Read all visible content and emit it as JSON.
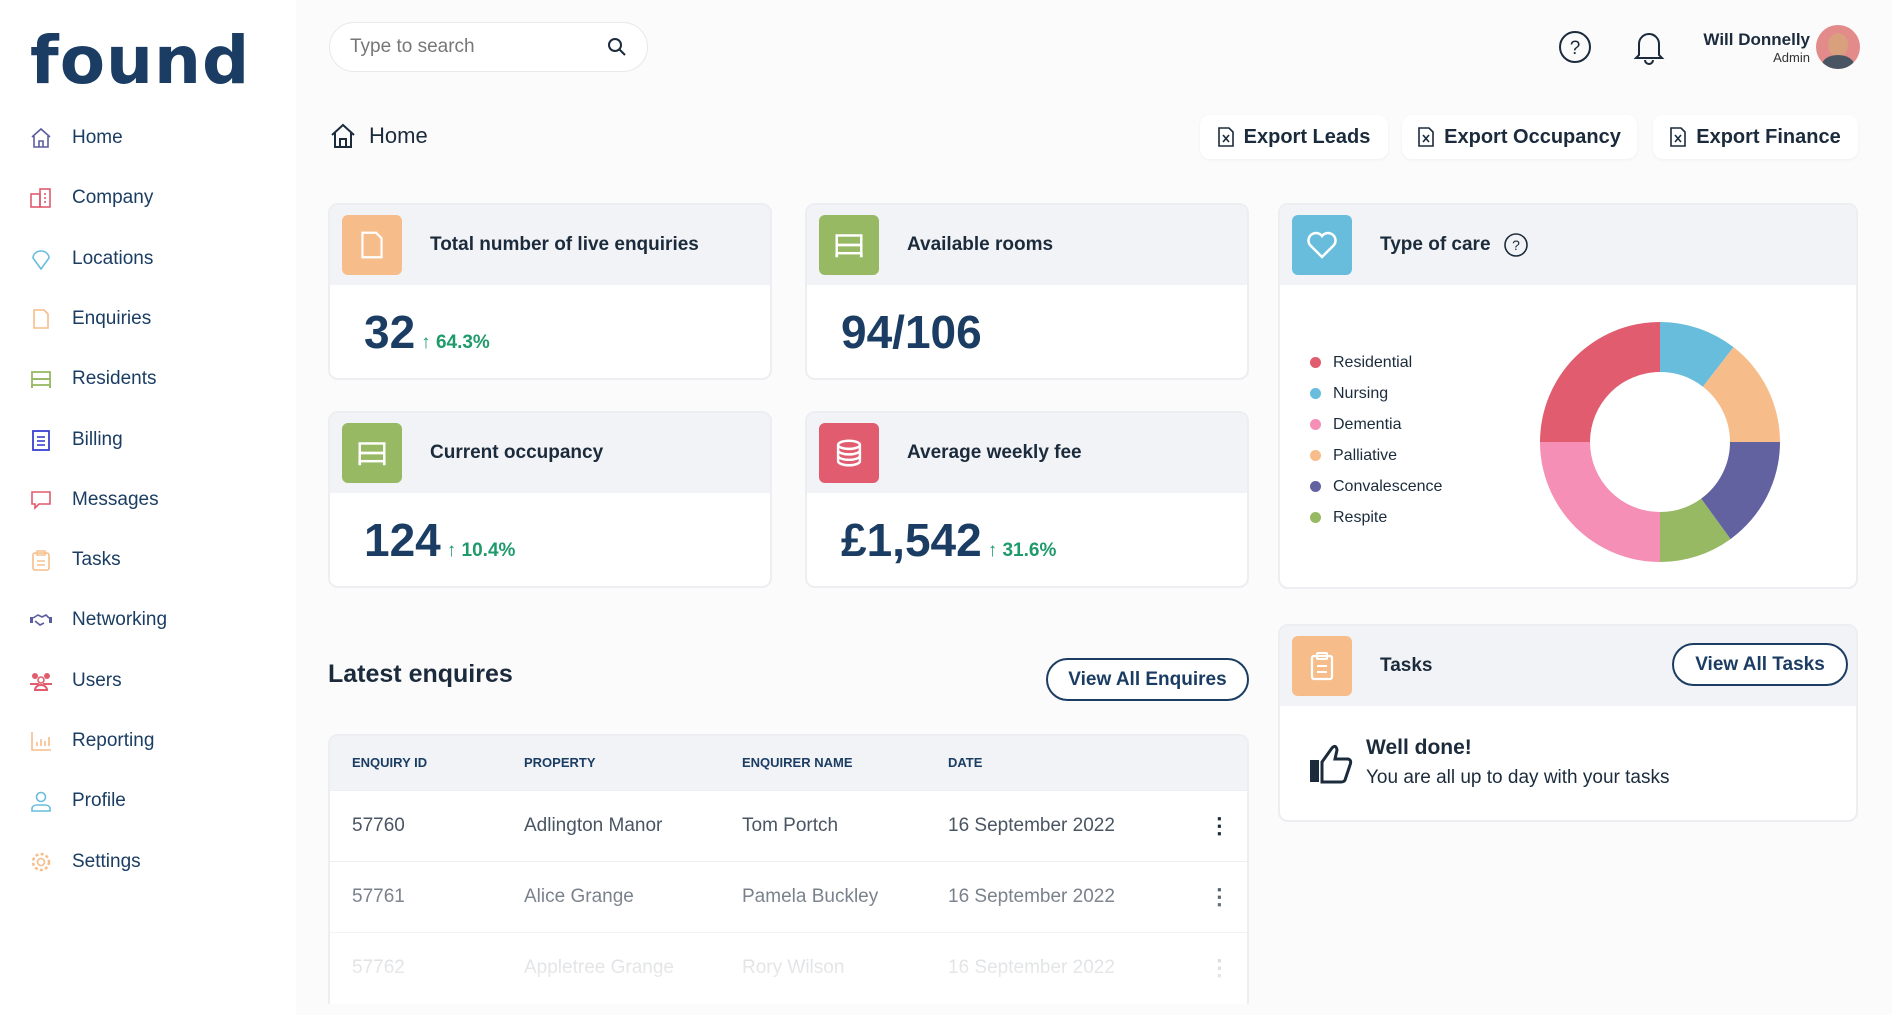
{
  "brand": {
    "logo": "found"
  },
  "sidebar": {
    "items": [
      {
        "label": "Home",
        "icon": "home-icon",
        "color": "#5b5e9e"
      },
      {
        "label": "Company",
        "icon": "building-icon",
        "color": "#e05c6e"
      },
      {
        "label": "Locations",
        "icon": "location-pin-icon",
        "color": "#67bddb"
      },
      {
        "label": "Enquiries",
        "icon": "document-icon",
        "color": "#f6bd8a"
      },
      {
        "label": "Residents",
        "icon": "bed-icon",
        "color": "#97b963"
      },
      {
        "label": "Billing",
        "icon": "receipt-icon",
        "color": "#3b3fd1"
      },
      {
        "label": "Messages",
        "icon": "chat-icon",
        "color": "#e05c6e"
      },
      {
        "label": "Tasks",
        "icon": "clipboard-icon",
        "color": "#f6bd8a"
      },
      {
        "label": "Networking",
        "icon": "handshake-icon",
        "color": "#5b5e9e"
      },
      {
        "label": "Users",
        "icon": "users-icon",
        "color": "#e05c6e"
      },
      {
        "label": "Reporting",
        "icon": "bar-chart-icon",
        "color": "#f6bd8a"
      },
      {
        "label": "Profile",
        "icon": "user-icon",
        "color": "#67bddb"
      },
      {
        "label": "Settings",
        "icon": "gear-icon",
        "color": "#f6bd8a"
      }
    ]
  },
  "header": {
    "search_placeholder": "Type to search",
    "user_name": "Will Donnelly",
    "user_role": "Admin"
  },
  "breadcrumb": {
    "label": "Home"
  },
  "exports": [
    "Export Leads",
    "Export Occupancy",
    "Export Finance"
  ],
  "stats": [
    {
      "title": "Total number of live enquiries",
      "value": "32",
      "delta": "64.3%",
      "icon": "document-icon",
      "color": "#f6bd8a"
    },
    {
      "title": "Available rooms",
      "value": "94/106",
      "delta": "",
      "icon": "bed-icon",
      "color": "#97b963"
    },
    {
      "title": "Current occupancy",
      "value": "124",
      "delta": "10.4%",
      "icon": "bed-icon",
      "color": "#97b963"
    },
    {
      "title": "Average weekly fee",
      "value": "£1,542",
      "delta": "31.6%",
      "icon": "coins-icon",
      "color": "#e05c6e"
    }
  ],
  "care": {
    "title": "Type of care",
    "icon_color": "#67bddb"
  },
  "chart_data": {
    "type": "pie",
    "donut": true,
    "categories": [
      "Residential",
      "Nursing",
      "Dementia",
      "Palliative",
      "Convalescence",
      "Respite"
    ],
    "values": [
      25,
      10.5,
      25,
      14.5,
      15,
      10
    ],
    "colors": [
      "#e05c6e",
      "#67bddb",
      "#f58fb6",
      "#f6bd8a",
      "#6262a0",
      "#97b963"
    ],
    "legend": "left"
  },
  "enquiries": {
    "title": "Latest enquires",
    "view_all": "View All Enquires",
    "columns": [
      "ENQUIRY ID",
      "PROPERTY",
      "ENQUIRER NAME",
      "DATE"
    ],
    "rows": [
      [
        "57760",
        "Adlington Manor",
        "Tom Portch",
        "16 September 2022"
      ],
      [
        "57761",
        "Alice Grange",
        "Pamela Buckley",
        "16 September 2022"
      ],
      [
        "57762",
        "Appletree Grange",
        "Rory Wilson",
        "16 September 2022"
      ]
    ]
  },
  "tasks": {
    "title": "Tasks",
    "view_all": "View All Tasks",
    "done_title": "Well done!",
    "done_text": "You are all up to day with your tasks",
    "icon_color": "#f6bd8a"
  }
}
